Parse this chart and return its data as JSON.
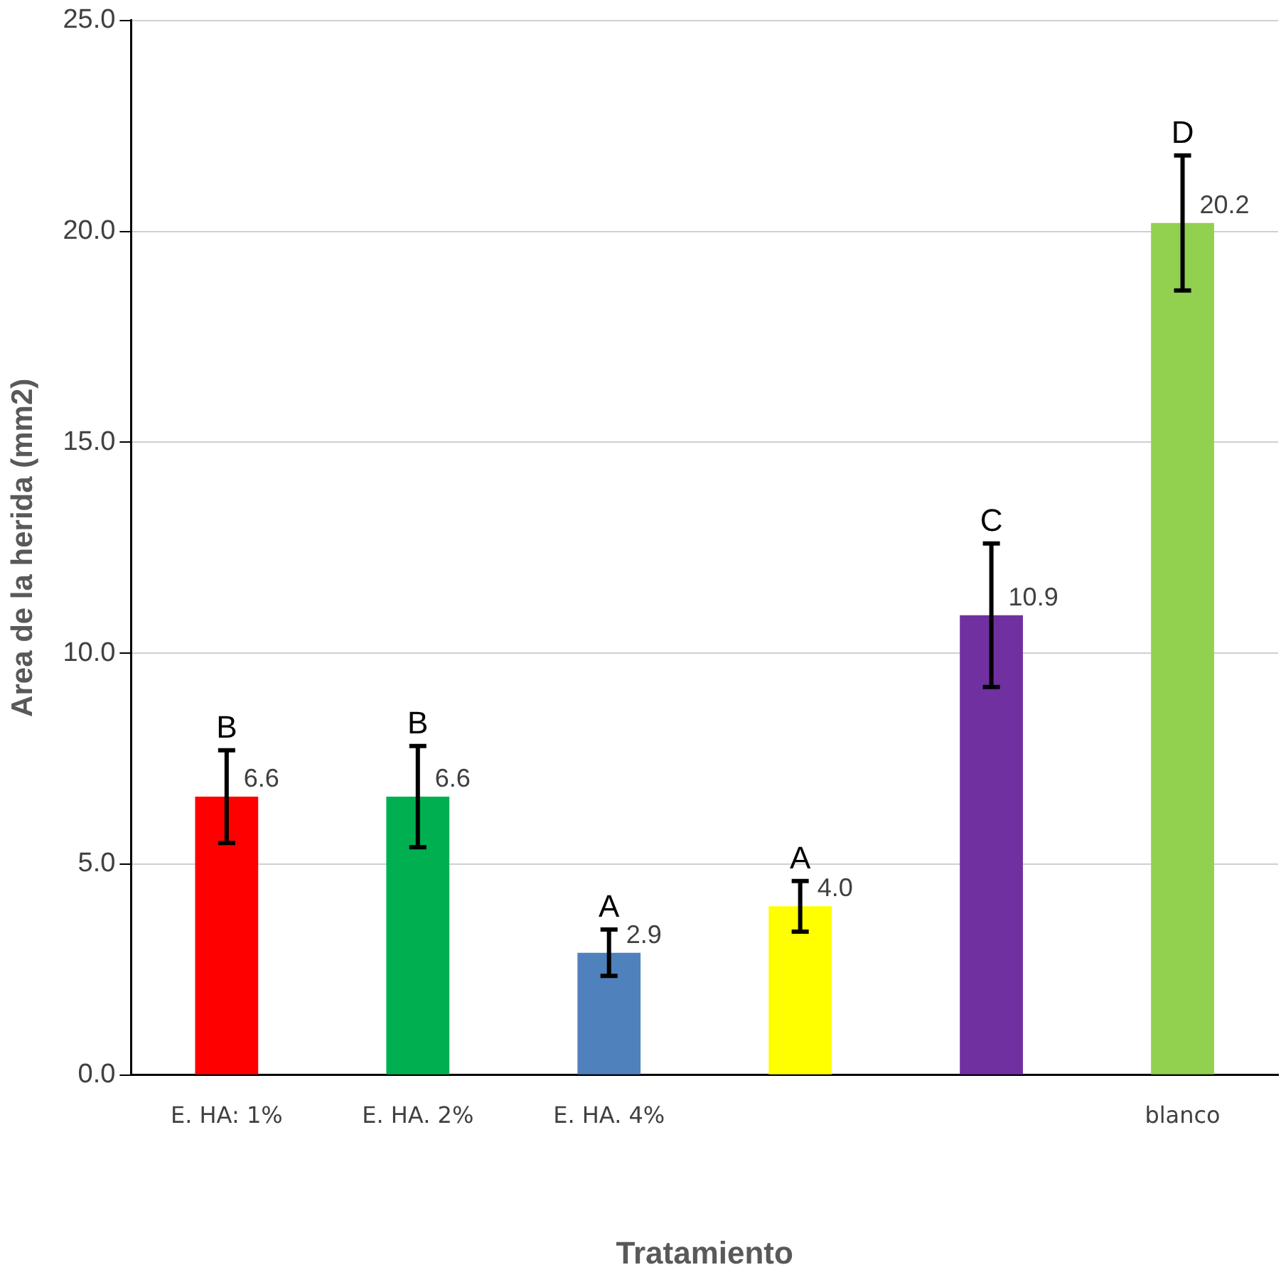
{
  "chart_data": {
    "type": "bar",
    "xlabel": "Tratamiento",
    "ylabel": "Area de la herida (mm2)",
    "categories": [
      "E. HA: 1%",
      "E. HA. 2%",
      "E. HA. 4%",
      null,
      null,
      "blanco"
    ],
    "values": [
      6.6,
      6.6,
      2.9,
      4.0,
      10.9,
      20.2
    ],
    "errors": [
      1.1,
      1.2,
      0.55,
      0.6,
      1.7,
      1.6
    ],
    "colors": [
      "#ff0000",
      "#00b050",
      "#4f81bd",
      "#ffff00",
      "#7030a0",
      "#92d050"
    ],
    "ylim": [
      0,
      25
    ],
    "yticks": [
      {
        "value": 0,
        "label": "0.0"
      },
      {
        "value": 5,
        "label": "5.0"
      },
      {
        "value": 10,
        "label": "10.0"
      },
      {
        "value": 15,
        "label": "15.0"
      },
      {
        "value": 20,
        "label": "20.0"
      },
      {
        "value": 25,
        "label": "25.0"
      }
    ],
    "grid": "y",
    "value_labels": [
      "6.6",
      "6.6",
      "2.9",
      "4.0",
      "10.9",
      "20.2"
    ],
    "annotations": [
      "B",
      "B",
      "A",
      "A",
      "C",
      "D"
    ]
  }
}
